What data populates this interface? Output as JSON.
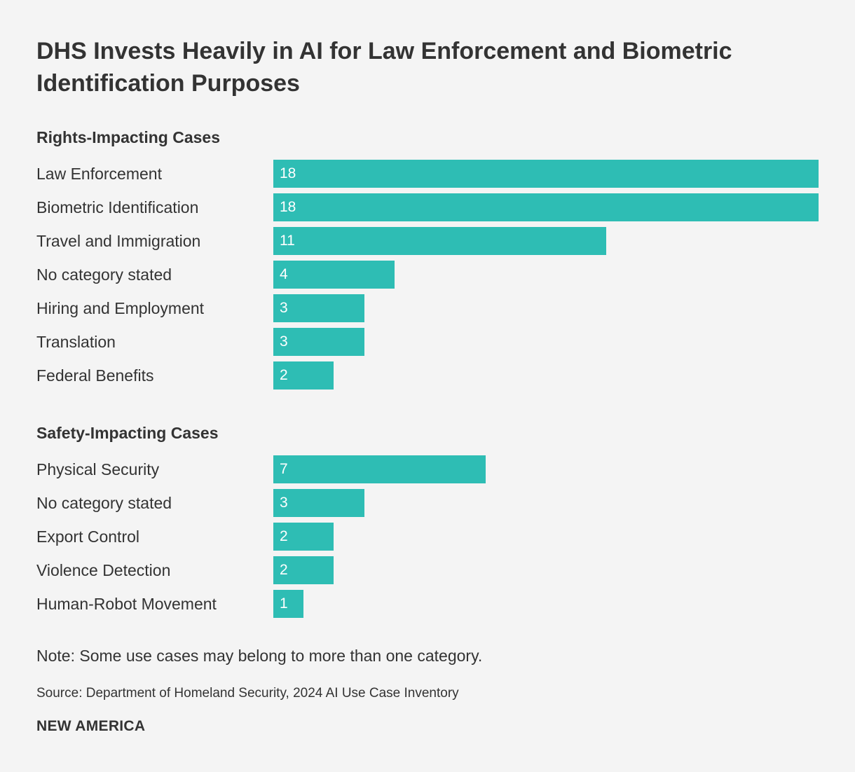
{
  "title": "DHS Invests Heavily in AI for Law Enforcement and Biometric Identification Purposes",
  "note": "Note: Some use cases may belong to more than one category.",
  "source": "Source: Department of Homeland Security, 2024 AI Use Case Inventory",
  "brand": "NEW AMERICA",
  "colors": {
    "bar": "#2ebdb4",
    "background": "#f4f4f4",
    "text": "#333333",
    "bar_value_text": "#ffffff"
  },
  "chart_data": {
    "type": "bar",
    "orientation": "horizontal",
    "xlim": [
      0,
      18
    ],
    "grid": false,
    "groups": [
      {
        "name": "Rights-Impacting Cases",
        "categories": [
          "Law Enforcement",
          "Biometric Identification",
          "Travel and Immigration",
          "No category stated",
          "Hiring and Employment",
          "Translation",
          "Federal Benefits"
        ],
        "values": [
          18,
          18,
          11,
          4,
          3,
          3,
          2
        ]
      },
      {
        "name": "Safety-Impacting Cases",
        "categories": [
          "Physical Security",
          "No category stated",
          "Export Control",
          "Violence Detection",
          "Human-Robot Movement"
        ],
        "values": [
          7,
          3,
          2,
          2,
          1
        ]
      }
    ]
  }
}
